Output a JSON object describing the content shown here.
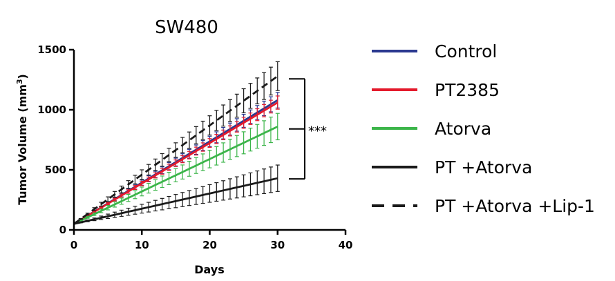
{
  "chart_data": {
    "type": "line",
    "title": "SW480",
    "xlabel": "Days",
    "ylabel": "Tumor Volume (mm",
    "ylabel_superscript": "3",
    "ylabel_close": ")",
    "xlim": [
      0,
      40
    ],
    "ylim": [
      0,
      1500
    ],
    "xticks": [
      0,
      10,
      20,
      30,
      40
    ],
    "yticks": [
      0,
      500,
      1000,
      1500
    ],
    "xtick_labels": [
      "0",
      "10",
      "20",
      "30",
      "40"
    ],
    "ytick_labels": [
      "0",
      "500",
      "1000",
      "1500"
    ],
    "grid": false,
    "legend_position": "right",
    "x": [
      0,
      1,
      2,
      3,
      4,
      5,
      6,
      7,
      8,
      9,
      10,
      11,
      12,
      13,
      14,
      15,
      16,
      17,
      18,
      19,
      20,
      21,
      22,
      23,
      24,
      25,
      26,
      27,
      28,
      29,
      30
    ],
    "series": [
      {
        "name": "Control",
        "color": "#2b3990",
        "dash": false,
        "start": 50,
        "end": 1080,
        "err_end": 65
      },
      {
        "name": "PT2385",
        "color": "#e41a2c",
        "dash": false,
        "start": 50,
        "end": 1060,
        "err_end": 55
      },
      {
        "name": "Atorva",
        "color": "#3cb54a",
        "dash": false,
        "start": 50,
        "end": 860,
        "err_end": 110
      },
      {
        "name": "PT +Atorva",
        "color": "#1a1a1a",
        "dash": false,
        "start": 50,
        "end": 430,
        "err_end": 110
      },
      {
        "name": "PT +Atorva +Lip-1",
        "color": "#1a1a1a",
        "dash": true,
        "start": 50,
        "end": 1280,
        "err_end": 120
      }
    ],
    "significance": {
      "label": "***",
      "from_series": "PT +Atorva +Lip-1",
      "to_series": "PT +Atorva"
    }
  }
}
